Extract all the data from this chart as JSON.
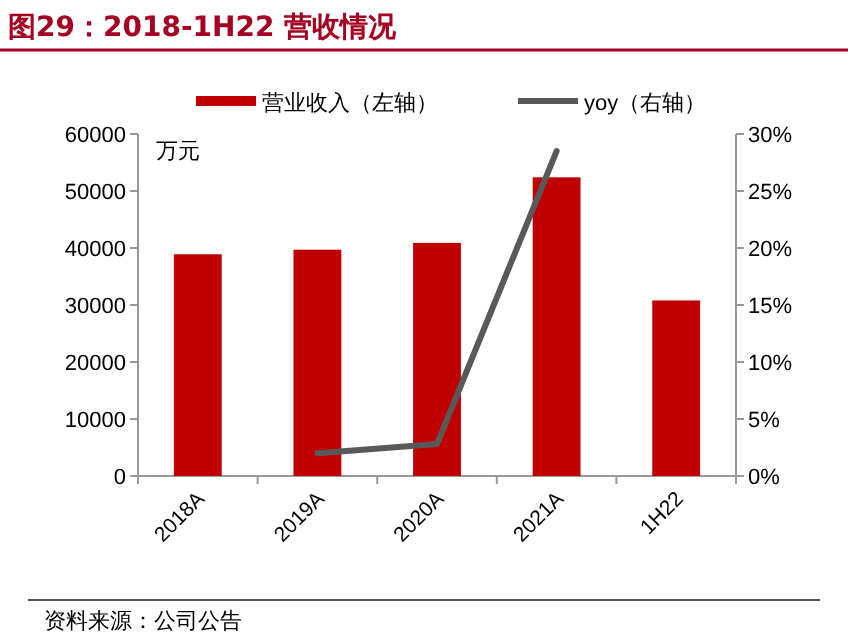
{
  "chart_data": {
    "type": "bar",
    "title": "图29：2018-1H22 营收情况",
    "categories": [
      "2018A",
      "2019A",
      "2020A",
      "2021A",
      "1H22"
    ],
    "series": [
      {
        "name": "营业收入（左轴）",
        "color": "#c00000",
        "values": [
          38900,
          39700,
          40900,
          52400,
          30800
        ]
      },
      {
        "name": "yoy（右轴）",
        "type": "line",
        "axis": "y2",
        "color": "#595959",
        "values": [
          null,
          2.0,
          2.8,
          28.5,
          null
        ]
      }
    ],
    "ylim": [
      0,
      60000
    ],
    "yticks": [
      0,
      10000,
      20000,
      30000,
      40000,
      50000,
      60000
    ],
    "y2lim": [
      0,
      30
    ],
    "y2ticks": [
      {
        "value": 0,
        "label": "0%"
      },
      {
        "value": 5,
        "label": "5%"
      },
      {
        "value": 10,
        "label": "10%"
      },
      {
        "value": 15,
        "label": "15%"
      },
      {
        "value": 20,
        "label": "20%"
      },
      {
        "value": 25,
        "label": "25%"
      },
      {
        "value": 30,
        "label": "30%"
      }
    ],
    "annotations": [
      "万元",
      "资料来源：公司公告"
    ],
    "legend": "top",
    "grid": false
  }
}
